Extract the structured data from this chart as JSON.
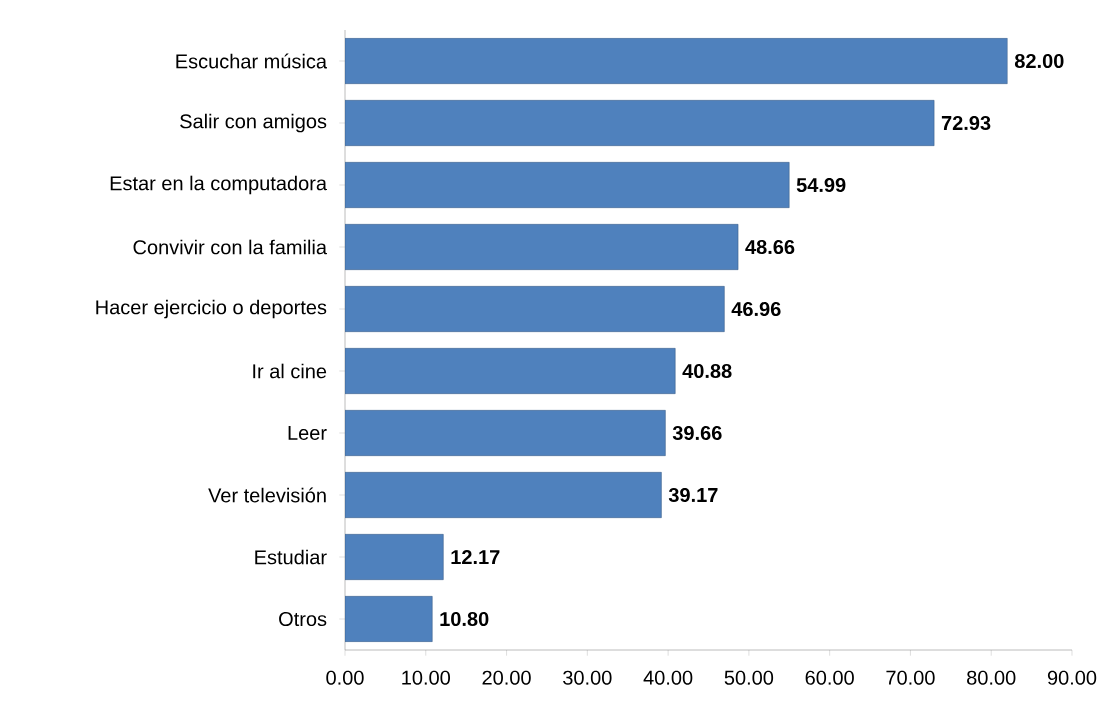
{
  "chart_data": {
    "type": "bar",
    "orientation": "horizontal",
    "categories": [
      "Escuchar música",
      "Salir con amigos",
      "Estar en la computadora",
      "Convivir con la familia",
      "Hacer ejercicio o deportes",
      "Ir al cine",
      "Leer",
      "Ver televisión",
      "Estudiar",
      "Otros"
    ],
    "values": [
      82.0,
      72.93,
      54.99,
      48.66,
      46.96,
      40.88,
      39.66,
      39.17,
      12.17,
      10.8
    ],
    "value_labels": [
      "82.00",
      "72.93",
      "54.99",
      "48.66",
      "46.96",
      "40.88",
      "39.66",
      "39.17",
      "12.17",
      "10.80"
    ],
    "color": "#4f81bd",
    "xlim": [
      0,
      90
    ],
    "xticks": [
      {
        "value": 0,
        "label": "0.00"
      },
      {
        "value": 10,
        "label": "10.00"
      },
      {
        "value": 20,
        "label": "20.00"
      },
      {
        "value": 30,
        "label": "30.00"
      },
      {
        "value": 40,
        "label": "40.00"
      },
      {
        "value": 50,
        "label": "50.00"
      },
      {
        "value": 60,
        "label": "60.00"
      },
      {
        "value": 70,
        "label": "70.00"
      },
      {
        "value": 80,
        "label": "80.00"
      },
      {
        "value": 90,
        "label": "90.00"
      }
    ],
    "grid": false
  }
}
